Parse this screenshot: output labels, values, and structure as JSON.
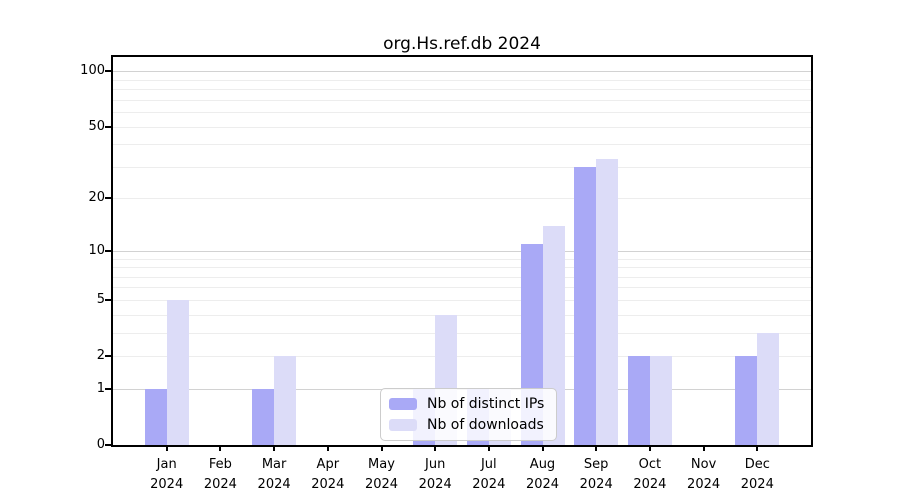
{
  "chart_data": {
    "type": "bar",
    "title": "org.Hs.ref.db 2024",
    "year_label": "2024",
    "categories": [
      "Jan",
      "Feb",
      "Mar",
      "Apr",
      "May",
      "Jun",
      "Jul",
      "Aug",
      "Sep",
      "Oct",
      "Nov",
      "Dec"
    ],
    "series": [
      {
        "name": "Nb of distinct IPs",
        "color": "#a9a9f6",
        "values": [
          1,
          0,
          1,
          0,
          0,
          1,
          1,
          11,
          30,
          2,
          0,
          2
        ]
      },
      {
        "name": "Nb of downloads",
        "color": "#dcdcf8",
        "values": [
          5,
          0,
          2,
          0,
          0,
          4,
          1,
          14,
          33,
          2,
          0,
          3
        ]
      }
    ],
    "yscale": "log10(1+x)",
    "ylim": [
      0,
      119.4
    ],
    "yticks": [
      0,
      1,
      2,
      5,
      10,
      20,
      50,
      100
    ],
    "gridlines_minor": [
      1,
      2,
      3,
      4,
      5,
      6,
      7,
      8,
      9,
      10,
      20,
      30,
      40,
      50,
      60,
      70,
      80,
      90,
      100
    ],
    "gridlines_major": [
      1,
      10,
      100
    ],
    "legend_position": "inside-bottom-center",
    "colors": {
      "grid_minor": "#ededed",
      "grid_major": "#d2d2d2",
      "frame": "#000000",
      "legend_border": "#cccccc"
    }
  }
}
